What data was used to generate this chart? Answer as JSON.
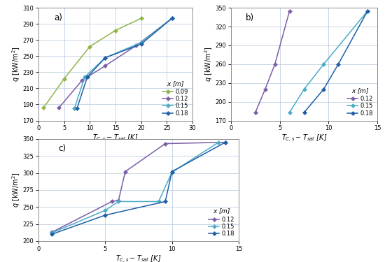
{
  "a": {
    "label": "a)",
    "xlim": [
      0,
      30
    ],
    "ylim": [
      170,
      310
    ],
    "xticks": [
      0,
      5,
      10,
      15,
      20,
      25,
      30
    ],
    "yticks": [
      170,
      190,
      210,
      230,
      250,
      270,
      290,
      310
    ],
    "series": [
      {
        "label": "0.09",
        "color": "#8DB54A",
        "x": [
          1,
          5,
          10,
          15,
          20
        ],
        "y": [
          186,
          222,
          262,
          282,
          297
        ]
      },
      {
        "label": "0.12",
        "color": "#7B5EA7",
        "x": [
          4,
          8.5,
          13,
          19,
          26
        ],
        "y": [
          186,
          220,
          238,
          263,
          297
        ]
      },
      {
        "label": "0.15",
        "color": "#4BACC6",
        "x": [
          7,
          9,
          13,
          20,
          26
        ],
        "y": [
          185,
          224,
          248,
          267,
          297
        ]
      },
      {
        "label": "0.18",
        "color": "#1F5FA6",
        "x": [
          7.5,
          9.5,
          13,
          20,
          26
        ],
        "y": [
          185,
          224,
          248,
          265,
          297
        ]
      }
    ]
  },
  "b": {
    "label": "b)",
    "xlim": [
      0,
      15
    ],
    "ylim": [
      170,
      350
    ],
    "xticks": [
      0,
      5,
      10,
      15
    ],
    "yticks": [
      170,
      200,
      230,
      260,
      290,
      320,
      350
    ],
    "series": [
      {
        "label": "0.12",
        "color": "#7B5EA7",
        "x": [
          2.5,
          3.5,
          4.5,
          6.0
        ],
        "y": [
          183,
          220,
          260,
          345
        ]
      },
      {
        "label": "0.15",
        "color": "#4BACC6",
        "x": [
          6.0,
          7.5,
          9.5,
          14.0
        ],
        "y": [
          183,
          220,
          260,
          345
        ]
      },
      {
        "label": "0.18",
        "color": "#1F5FA6",
        "x": [
          7.5,
          9.5,
          11.0,
          14.0
        ],
        "y": [
          183,
          220,
          260,
          345
        ]
      }
    ]
  },
  "c": {
    "label": "c)",
    "xlim": [
      0,
      15
    ],
    "ylim": [
      200,
      350
    ],
    "xticks": [
      0,
      5,
      10,
      15
    ],
    "yticks": [
      200,
      225,
      250,
      275,
      300,
      325,
      350
    ],
    "series": [
      {
        "label": "0.12",
        "color": "#7B5EA7",
        "x": [
          1.0,
          5.5,
          6.0,
          6.5,
          9.5,
          14.0
        ],
        "y": [
          213,
          258,
          260,
          302,
          343,
          345
        ]
      },
      {
        "label": "0.15",
        "color": "#4BACC6",
        "x": [
          1.0,
          5.0,
          6.0,
          9.0,
          10.0,
          13.5
        ],
        "y": [
          212,
          245,
          258,
          258,
          301,
          345
        ]
      },
      {
        "label": "0.18",
        "color": "#1F5FA6",
        "x": [
          1.0,
          5.0,
          9.5,
          10.0,
          14.0
        ],
        "y": [
          210,
          238,
          258,
          302,
          345
        ]
      }
    ]
  },
  "xlabel": "$T_{C,s} - T_{sat}$ [K]",
  "ylabel_q": "$q$ [kW/m$^{2}$]",
  "legend_title": "$x$ [m]",
  "bg_color": "#FFFFFF",
  "grid_color": "#C0D0E0"
}
